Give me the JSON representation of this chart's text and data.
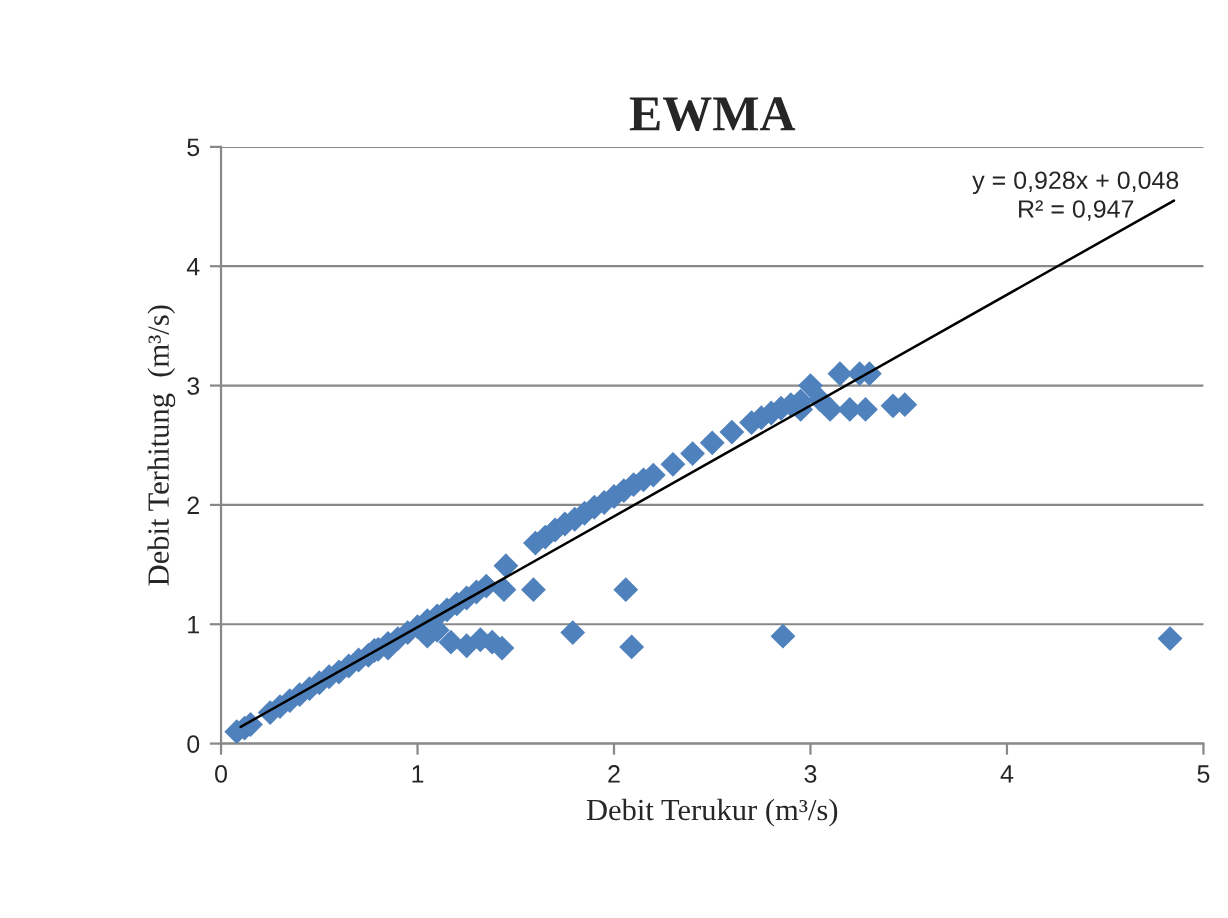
{
  "chart_data": {
    "type": "scatter",
    "title": "EWMA",
    "xlabel": "Debit Terukur (m³/s)",
    "ylabel": "Debit Terhitung  (m³/s)",
    "xlim": [
      0,
      5
    ],
    "ylim": [
      0,
      5
    ],
    "xticks": [
      0,
      1,
      2,
      3,
      4,
      5
    ],
    "yticks": [
      0,
      1,
      2,
      3,
      4,
      5
    ],
    "grid": "y",
    "legend": false,
    "annotations": [
      "y = 0,928x + 0,048\nR² = 0,947"
    ],
    "series": [
      {
        "marker": "diamond",
        "color": "#4f81bd",
        "x": [
          0.08,
          0.12,
          0.15,
          0.25,
          0.3,
          0.35,
          0.4,
          0.45,
          0.5,
          0.55,
          0.6,
          0.65,
          0.7,
          0.75,
          0.8,
          0.85,
          0.9,
          0.95,
          1.0,
          1.05,
          1.1,
          1.15,
          1.2,
          1.25,
          1.3,
          1.35,
          1.45,
          1.6,
          1.65,
          1.7,
          1.75,
          1.8,
          1.85,
          1.9,
          1.95,
          2.0,
          2.05,
          2.1,
          2.15,
          2.2,
          2.3,
          2.4,
          2.5,
          2.6,
          2.7,
          2.75,
          2.8,
          2.85,
          2.9,
          2.95,
          3.0,
          3.05,
          3.15,
          3.25,
          3.3,
          2.95,
          3.1,
          3.2,
          3.28,
          3.42,
          3.48,
          1.44,
          1.59,
          2.06,
          2.09,
          2.86,
          4.83,
          1.79,
          1.17,
          1.25,
          1.32,
          1.38,
          1.43,
          1.05,
          1.1,
          0.78,
          0.85
        ],
        "values": [
          0.1,
          0.13,
          0.16,
          0.26,
          0.31,
          0.36,
          0.41,
          0.46,
          0.51,
          0.56,
          0.6,
          0.65,
          0.7,
          0.74,
          0.79,
          0.84,
          0.88,
          0.93,
          0.98,
          1.03,
          1.07,
          1.12,
          1.17,
          1.22,
          1.27,
          1.32,
          1.49,
          1.68,
          1.73,
          1.79,
          1.84,
          1.88,
          1.93,
          1.98,
          2.02,
          2.07,
          2.12,
          2.17,
          2.21,
          2.25,
          2.34,
          2.43,
          2.52,
          2.61,
          2.69,
          2.73,
          2.77,
          2.81,
          2.84,
          2.87,
          3.0,
          2.88,
          3.1,
          3.1,
          3.1,
          2.8,
          2.8,
          2.8,
          2.8,
          2.83,
          2.84,
          1.29,
          1.29,
          1.29,
          0.81,
          0.9,
          0.88,
          0.93,
          0.85,
          0.82,
          0.87,
          0.85,
          0.8,
          0.9,
          0.95,
          0.78,
          0.8
        ]
      },
      {
        "type": "line",
        "color": "#000000",
        "x": [
          0.1,
          4.85
        ],
        "values": [
          0.14,
          4.55
        ]
      }
    ]
  }
}
